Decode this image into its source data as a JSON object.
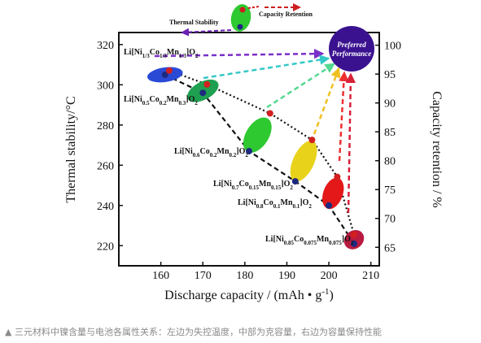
{
  "chart_data": {
    "type": "scatter",
    "xlabel_main": "Discharge capacity / (mAh",
    "xlabel_bullet": "•",
    "xlabel_unit": "g",
    "xlabel_exp": "-1",
    "xlabel_close": ")",
    "ylabel_left": "Thermal stability/°C",
    "ylabel_right": "Capacity retention / %",
    "xlim": [
      150,
      212
    ],
    "ylim_left": [
      210,
      326
    ],
    "ylim_right": [
      61.8,
      102.2
    ],
    "x_ticks": [
      160,
      170,
      180,
      190,
      200,
      210
    ],
    "y_left_ticks": [
      220,
      240,
      260,
      280,
      300,
      320
    ],
    "y_right_ticks": [
      65,
      70,
      75,
      80,
      85,
      90,
      95,
      100
    ],
    "legend": {
      "thermal": "Thermal Stability",
      "capacity": "Capacity Retention",
      "thermal_color": "#6a1fb0",
      "capacity_color": "#cc1f1f"
    },
    "preferred": {
      "line1": "Preferred",
      "line2": "Performance",
      "color": "#3a1290"
    },
    "series": [
      {
        "name": "Thermal Stability",
        "color": "#1e2a80",
        "points": [
          [
            161,
            305
          ],
          [
            170,
            296
          ],
          [
            181,
            267
          ],
          [
            192,
            252
          ],
          [
            200,
            240
          ],
          [
            206,
            221
          ]
        ]
      },
      {
        "name": "Capacity Retention",
        "color": "#d21f1f",
        "points": [
          [
            162,
            95.6
          ],
          [
            171,
            93.2
          ],
          [
            186,
            88.2
          ],
          [
            196,
            83.6
          ],
          [
            202,
            77.2
          ],
          [
            206,
            67.2
          ]
        ]
      }
    ],
    "materials": [
      {
        "label": {
          "p1": "Li[Ni",
          "s1": "1/3",
          "p2": "Co",
          "s2": "1/3",
          "p3": "Mn",
          "s3": "1/3",
          "p4": "]O",
          "s4": "2"
        },
        "color": "#2a4ad6",
        "cx": 161,
        "cy": 305,
        "arrow": "#7a2fc8"
      },
      {
        "label": {
          "p1": "Li[Ni",
          "s1": "0.5",
          "p2": "Co",
          "s2": "0.2",
          "p3": "Mn",
          "s3": "0.3",
          "p4": "]O",
          "s4": "2"
        },
        "color": "#1ea050",
        "cx": 170,
        "cy": 297,
        "arrow": "#35c8c8"
      },
      {
        "label": {
          "p1": "Li[Ni",
          "s1": "0.6",
          "p2": "Co",
          "s2": "0.2",
          "p3": "Mn",
          "s3": "0.2",
          "p4": "]O",
          "s4": "2"
        },
        "color": "#2ec830",
        "cx": 183,
        "cy": 275,
        "arrow": "#55d890"
      },
      {
        "label": {
          "p1": "Li[Ni",
          "s1": "0.7",
          "p2": "Co",
          "s2": "0.15",
          "p3": "Mn",
          "s3": "0.15",
          "p4": "]O",
          "s4": "2"
        },
        "color": "#e8d21a",
        "cx": 194,
        "cy": 262,
        "arrow": "#f0c020"
      },
      {
        "label": {
          "p1": "Li[Ni",
          "s1": "0.8",
          "p2": "Co",
          "s2": "0.1",
          "p3": "Mn",
          "s3": "0.1",
          "p4": "]O",
          "s4": "2"
        },
        "color": "#e41818",
        "cx": 201,
        "cy": 246,
        "arrow": "#ee3030"
      },
      {
        "label": {
          "p1": "Li[Ni",
          "s1": "0.85",
          "p2": "Co",
          "s2": "0.075",
          "p3": "Mn",
          "s3": "0.075",
          "p4": "]O",
          "s4": "2"
        },
        "color": "#b81a40",
        "cx": 206,
        "cy": 223,
        "arrow": "#d82038"
      }
    ]
  },
  "caption": "▲ 三元材料中镍含量与电池各属性关系：左边为失控温度，中部为克容量，右边为容量保持性能"
}
